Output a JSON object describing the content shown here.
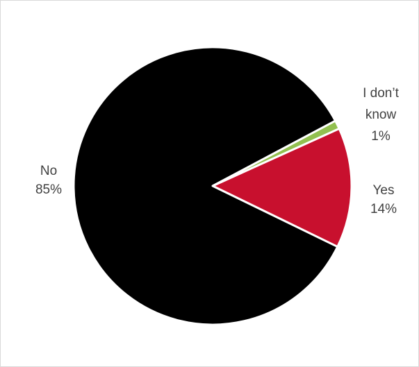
{
  "chart_data": {
    "type": "pie",
    "title": "",
    "categories": [
      "Yes",
      "I don’t know",
      "No"
    ],
    "values": [
      14,
      1,
      85
    ],
    "value_labels": [
      "14%",
      "1%",
      "85%"
    ],
    "colors": [
      "#c8102e",
      "#92c050",
      "#000000"
    ],
    "slice_border_color": "#ffffff",
    "legend": "none",
    "labels": [
      {
        "lines": [
          "Yes",
          "14%"
        ]
      },
      {
        "lines": [
          "I don’t",
          "know",
          "1%"
        ]
      },
      {
        "lines": [
          "No",
          "85%"
        ]
      }
    ]
  }
}
